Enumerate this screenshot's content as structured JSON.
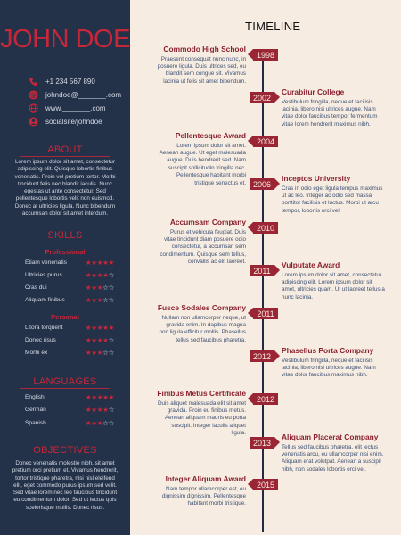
{
  "name": "JOHN DOE",
  "contact": [
    {
      "icon": "phone-icon",
      "text": "+1 234 567 890"
    },
    {
      "icon": "email-icon",
      "text": "johndoe@_______.com"
    },
    {
      "icon": "globe-icon",
      "text": "www._______.com"
    },
    {
      "icon": "social-icon",
      "text": "socialsite/johndoe"
    }
  ],
  "about": {
    "title": "ABOUT",
    "text": "Lorem ipsum dolor sit amet, consectetur adipiscing elit. Quisque lobortis finibus venenatis. Proin vel pretium tortor. Morbi tincidunt felis nec blandit iaculis. Nunc egestas ut ante consectetur. Sed pellentesque lobortis velit non euismod. Donec at ultricies ligula. Nunc bibendum accumsan dolor sit amet interdum."
  },
  "skills": {
    "title": "SKILLS",
    "professional_label": "Professional",
    "professional": [
      {
        "name": "Etiam venenatis",
        "rating": 5
      },
      {
        "name": "Ultricies purus",
        "rating": 4
      },
      {
        "name": "Cras dui",
        "rating": 3
      },
      {
        "name": "Aliquam finibus",
        "rating": 3
      }
    ],
    "personal_label": "Personal",
    "personal": [
      {
        "name": "Litora torquent",
        "rating": 5
      },
      {
        "name": "Donec risus",
        "rating": 4
      },
      {
        "name": "Morbi ex",
        "rating": 3
      }
    ]
  },
  "languages": {
    "title": "LANGUAGES",
    "items": [
      {
        "name": "English",
        "rating": 5
      },
      {
        "name": "German",
        "rating": 4
      },
      {
        "name": "Spanish",
        "rating": 3
      }
    ]
  },
  "objectives": {
    "title": "OBJECTIVES",
    "text": "Donec venenatis molestie nibh, sit amet pretium orci pretium et. Vivamus hendrerit, tortor tristique pharetra, nisi nisl eleifend elit, eget commodo purus ipsum sed velit. Sed vitae lorem nec leo faucibus tincidunt eu condimentum dolor. Sed ut lectus quis scelerisque mollis. Donec risus."
  },
  "timeline": {
    "title": "TIMELINE",
    "entries": [
      {
        "year": "1998",
        "side": "left",
        "title": "Commodo High School",
        "text": "Praesent consequat nunc nunc, in posuere ligula. Duis ultrices sed, eu blandit sem congue sit. Vivamus lacinia ut felis sit amet bibendum."
      },
      {
        "year": "2002",
        "side": "right",
        "title": "Curabitur College",
        "text": "Vestibulum fringilla, neque et facilisis lacinia, libero nisi ultrices augue. Nam vitae dolor faucibus tempor fermentum vitae lorem hendrerit maximus nibh."
      },
      {
        "year": "2004",
        "side": "left",
        "title": "Pellentesque Award",
        "text": "Lorem ipsum dolor sit amet. Aenean augue. Ut eget malesuada augue. Duis hendrerit sed. Nam suscipit sollicitudin fringilla nec. Pellentesque habitant morbi tristique senectus et."
      },
      {
        "year": "2006",
        "side": "right",
        "title": "Inceptos University",
        "text": "Cras in odio eget ligula tempus maximus ut ac leo. Integer ac odio sed massa porttitor facilisis et luctus. Morbi ut arcu tempor, lobortis orci vel."
      },
      {
        "year": "2010",
        "side": "left",
        "title": "Accumsam Company",
        "text": "Purus et vehicula feugiat. Duis vitae tincidunt diam posuere odio consectetur, a accumsan sem condimentum. Quisque sem tellus, convallis ac elit laoreet."
      },
      {
        "year": "2011",
        "side": "right",
        "title": "Vulputate Award",
        "text": "Lorem ipsum dolor sit amet, consectetur adipiscing elit. Lorem ipsum dolor sit amet, ultricies quam. Ut ut laoreet tellus a nunc lacinia."
      },
      {
        "year": "2011",
        "side": "left",
        "title": "Fusce Sodales Company",
        "text": "Nullam non ullamcorper neque, ut gravida enim. In dapibus magna non ligula efficitur mollis. Phasellus tellus sed faucibus pharetra."
      },
      {
        "year": "2012",
        "side": "right",
        "title": "Phasellus Porta Company",
        "text": "Vestibulum fringilla, neque et facilisis lacinia, libero nisi ultrices augue. Nam vitae dolor faucibus maximus nibh."
      },
      {
        "year": "2012",
        "side": "left",
        "title": "Finibus Metus Certificate",
        "text": "Duis aliquet malesuada elit sit amet gravida. Proin eu finibus metus. Aenean aliquam mauris eu porta suscipit. Integer iaculis aliquet ligula."
      },
      {
        "year": "2013",
        "side": "right",
        "title": "Aliquam Placerat Company",
        "text": "Tellus sed faucibus pharetra, elit lectus venenatis arcu, eu ullamcorper nisi enim. Aliquam erat volutpat. Aenean a suscipit nibh, non sodales lobortis orci vel."
      },
      {
        "year": "2015",
        "side": "left",
        "title": "Integer Aliquam Award",
        "text": "Nam tempor ullamcorper est, eu dignissim dignissim. Pellentesque habitant morbi tristique."
      }
    ]
  },
  "colors": {
    "sidebar": "#233149",
    "accent": "#c8273a",
    "year_tag": "#9a2534",
    "background": "#f7ece1"
  }
}
